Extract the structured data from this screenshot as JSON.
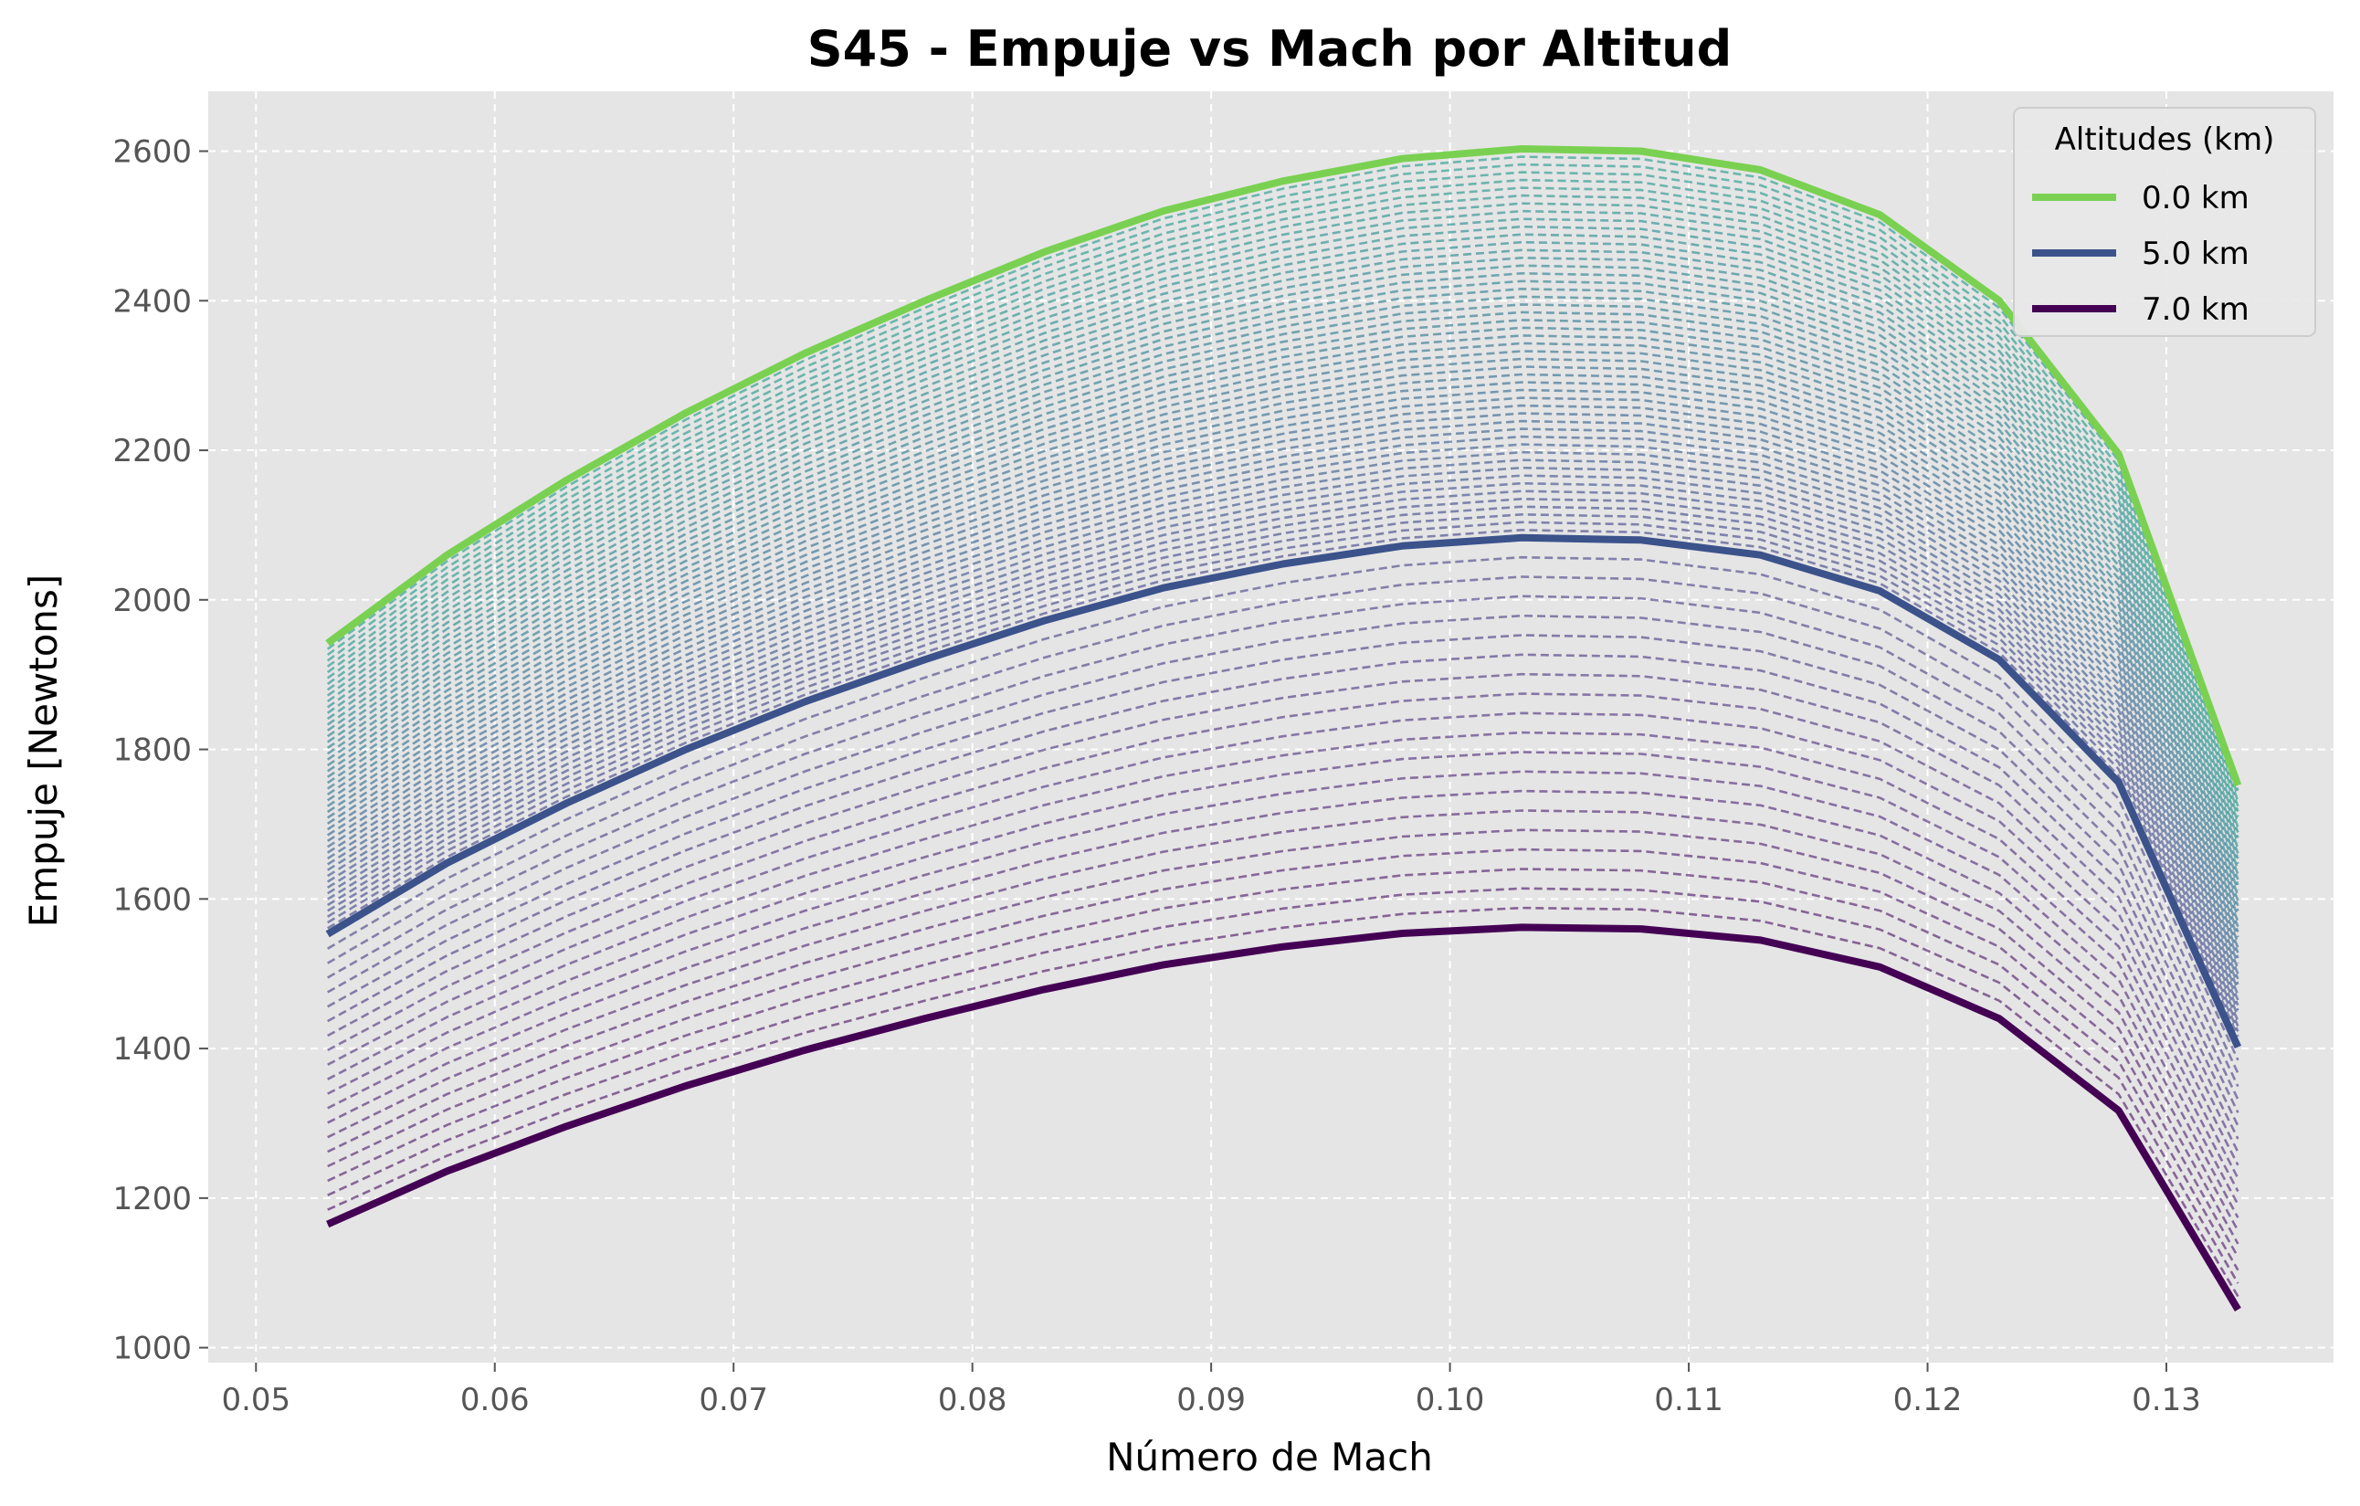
{
  "chart_data": {
    "type": "line",
    "title": "S45 - Empuje vs Mach por Altitud",
    "xlabel": "Número de Mach",
    "ylabel": "Empuje [Newtons]",
    "xlim": [
      0.048,
      0.137
    ],
    "ylim": [
      980,
      2680
    ],
    "x_ticks": [
      0.05,
      0.06,
      0.07,
      0.08,
      0.09,
      0.1,
      0.11,
      0.12,
      0.13
    ],
    "x_tick_labels": [
      "0.05",
      "0.06",
      "0.07",
      "0.08",
      "0.09",
      "0.10",
      "0.11",
      "0.12",
      "0.13"
    ],
    "y_ticks": [
      1000,
      1200,
      1400,
      1600,
      1800,
      2000,
      2200,
      2400,
      2600
    ],
    "y_tick_labels": [
      "1000",
      "1200",
      "1400",
      "1600",
      "1800",
      "2000",
      "2200",
      "2400",
      "2600"
    ],
    "grid": true,
    "legend_title": "Altitudes (km)",
    "legend_position": "top-right",
    "x": [
      0.053,
      0.058,
      0.063,
      0.068,
      0.073,
      0.078,
      0.083,
      0.088,
      0.093,
      0.098,
      0.103,
      0.108,
      0.113,
      0.118,
      0.123,
      0.128,
      0.133
    ],
    "series": [
      {
        "name": "0.0 km",
        "altitude_km": 0.0,
        "color": "#7ad151",
        "values": [
          1942,
          2060,
          2160,
          2250,
          2330,
          2400,
          2465,
          2520,
          2560,
          2590,
          2603,
          2600,
          2575,
          2515,
          2400,
          2195,
          1752
        ]
      },
      {
        "name": "5.0 km",
        "altitude_km": 5.0,
        "color": "#3b528b",
        "values": [
          1553,
          1648,
          1728,
          1800,
          1864,
          1920,
          1972,
          2016,
          2048,
          2072,
          2083,
          2080,
          2060,
          2012,
          1920,
          1756,
          1402
        ]
      },
      {
        "name": "7.0 km",
        "altitude_km": 7.0,
        "color": "#440154",
        "values": [
          1165,
          1236,
          1296,
          1350,
          1398,
          1440,
          1479,
          1512,
          1536,
          1554,
          1562,
          1560,
          1545,
          1509,
          1440,
          1317,
          1051
        ]
      }
    ],
    "intermediate_curves": {
      "count_between_0_and_5_km": 49,
      "count_between_5_and_7_km": 19,
      "style": "dashed"
    }
  }
}
